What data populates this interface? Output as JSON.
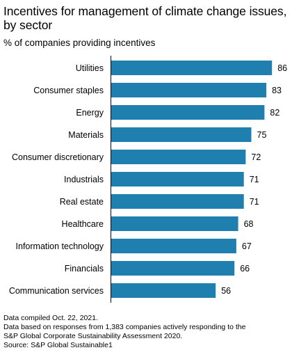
{
  "title": "Incentives for management of climate change issues, by sector",
  "subtitle": "% of companies providing incentives",
  "notes": [
    "Data compiled Oct. 22, 2021.",
    "Data based on responses from 1,383 companies actively responding to the",
    "S&P Global Corporate Sustainability Assessment 2020.",
    "Source: S&P Global Sustainable1"
  ],
  "colors": {
    "bar": "#1f7fae"
  },
  "chart_data": {
    "type": "bar",
    "orientation": "horizontal",
    "title": "Incentives for management of climate change issues, by sector",
    "subtitle": "% of companies providing incentives",
    "categories": [
      "Utilities",
      "Consumer staples",
      "Energy",
      "Materials",
      "Consumer discretionary",
      "Industrials",
      "Real estate",
      "Healthcare",
      "Information technology",
      "Financials",
      "Communication services"
    ],
    "values": [
      86,
      83,
      82,
      75,
      72,
      71,
      71,
      68,
      67,
      66,
      56
    ],
    "xlim": [
      0,
      90
    ],
    "grid": false,
    "data_labels": true
  }
}
